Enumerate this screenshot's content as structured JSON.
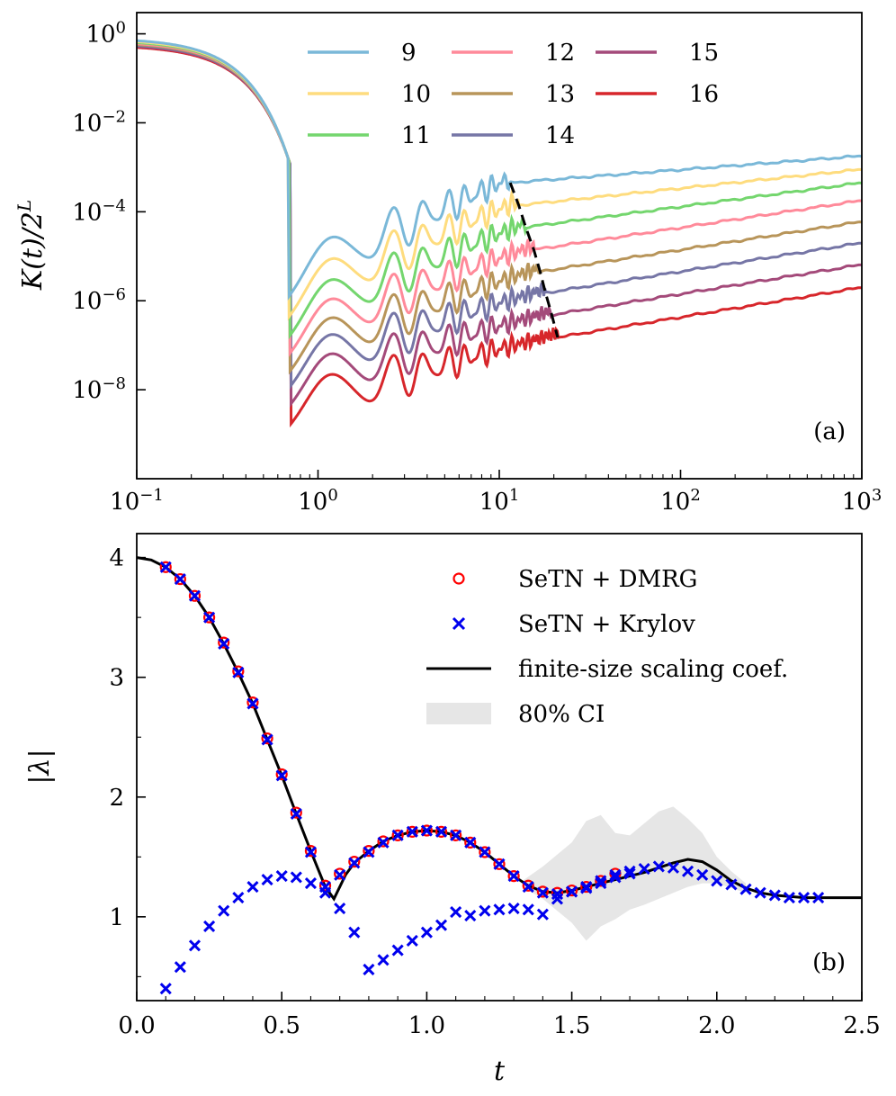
{
  "chart_data": [
    {
      "type": "line",
      "panel_label": "(a)",
      "xlabel": "",
      "ylabel": "K(t)/2^L",
      "ylabel_parts": {
        "base": "K(t)/2",
        "sup": "L"
      },
      "x_scale": "log",
      "y_scale": "log",
      "xlim": [
        0.1,
        1000
      ],
      "ylim": [
        1e-10,
        3
      ],
      "x_ticks": [
        {
          "value": 0.1,
          "base": "10",
          "exp": "−1"
        },
        {
          "value": 1,
          "base": "10",
          "exp": "0"
        },
        {
          "value": 10,
          "base": "10",
          "exp": "1"
        },
        {
          "value": 100,
          "base": "10",
          "exp": "2"
        },
        {
          "value": 1000,
          "base": "10",
          "exp": "3"
        }
      ],
      "y_ticks": [
        {
          "value": 1,
          "base": "10",
          "exp": "0"
        },
        {
          "value": 0.01,
          "base": "10",
          "exp": "−2"
        },
        {
          "value": 0.0001,
          "base": "10",
          "exp": "−4"
        },
        {
          "value": 1e-06,
          "base": "10",
          "exp": "−6"
        },
        {
          "value": 1e-08,
          "base": "10",
          "exp": "−8"
        }
      ],
      "legend_position": "top-center",
      "series": [
        {
          "name": "9",
          "color": "#7ab8d8",
          "init": 0.8,
          "dip": 2e-06,
          "plateau": 0.00045,
          "tth": 11.5,
          "late": 0.0018
        },
        {
          "name": "10",
          "color": "#fedc7e",
          "init": 0.76,
          "dip": 7e-07,
          "plateau": 0.00014,
          "tth": 12.8,
          "late": 0.0009
        },
        {
          "name": "11",
          "color": "#74d66e",
          "init": 0.72,
          "dip": 2.5e-07,
          "plateau": 4.5e-05,
          "tth": 14.0,
          "late": 0.00045
        },
        {
          "name": "12",
          "color": "#ff8a9a",
          "init": 0.68,
          "dip": 1e-07,
          "plateau": 1.4e-05,
          "tth": 15.5,
          "late": 0.00018
        },
        {
          "name": "13",
          "color": "#b8955a",
          "init": 0.65,
          "dip": 4e-08,
          "plateau": 4.5e-06,
          "tth": 16.8,
          "late": 6e-05
        },
        {
          "name": "14",
          "color": "#7676a6",
          "init": 0.62,
          "dip": 1.8e-08,
          "plateau": 1.5e-06,
          "tth": 18.0,
          "late": 2e-05
        },
        {
          "name": "15",
          "color": "#a44a7a",
          "init": 0.59,
          "dip": 7e-09,
          "plateau": 4.8e-07,
          "tth": 19.5,
          "late": 6.5e-06
        },
        {
          "name": "16",
          "color": "#d7262b",
          "init": 0.56,
          "dip": 2.5e-09,
          "plateau": 1.5e-07,
          "tth": 21.0,
          "late": 2e-06
        }
      ],
      "thouless_line": {
        "style": "dashed",
        "color": "#000000"
      }
    },
    {
      "type": "scatter",
      "panel_label": "(b)",
      "xlabel": "t",
      "ylabel": "|λ|",
      "xlim": [
        0.0,
        2.5
      ],
      "ylim": [
        0.3,
        4.2
      ],
      "x_ticks": [
        "0.0",
        "0.5",
        "1.0",
        "1.5",
        "2.0",
        "2.5"
      ],
      "x_tick_values": [
        0.0,
        0.5,
        1.0,
        1.5,
        2.0,
        2.5
      ],
      "y_ticks": [
        "1",
        "2",
        "3",
        "4"
      ],
      "y_tick_values": [
        1,
        2,
        3,
        4
      ],
      "legend_position": "top-right",
      "legend": [
        {
          "label": "SeTN + DMRG",
          "marker": "circle",
          "color": "#ff0000"
        },
        {
          "label": "SeTN + Krylov",
          "marker": "x",
          "color": "#0000ee"
        },
        {
          "label": "finite-size scaling coef.",
          "marker": "line",
          "color": "#000000"
        },
        {
          "label": "80% CI",
          "marker": "patch",
          "color": "#e6e6e6"
        }
      ],
      "fit_curve": {
        "x": [
          0.0,
          0.05,
          0.1,
          0.15,
          0.2,
          0.25,
          0.3,
          0.35,
          0.4,
          0.45,
          0.5,
          0.55,
          0.6,
          0.65,
          0.68,
          0.72,
          0.75,
          0.8,
          0.85,
          0.9,
          0.95,
          1.0,
          1.05,
          1.1,
          1.15,
          1.2,
          1.25,
          1.3,
          1.35,
          1.4,
          1.45,
          1.5,
          1.55,
          1.6,
          1.65,
          1.7,
          1.75,
          1.8,
          1.85,
          1.9,
          1.95,
          2.0,
          2.05,
          2.1,
          2.15,
          2.2,
          2.25,
          2.3,
          2.35,
          2.4,
          2.5
        ],
        "y": [
          4.0,
          3.98,
          3.92,
          3.82,
          3.68,
          3.5,
          3.28,
          3.04,
          2.78,
          2.48,
          2.18,
          1.86,
          1.55,
          1.25,
          1.15,
          1.35,
          1.45,
          1.55,
          1.63,
          1.68,
          1.71,
          1.72,
          1.71,
          1.68,
          1.62,
          1.54,
          1.44,
          1.34,
          1.26,
          1.21,
          1.2,
          1.22,
          1.25,
          1.28,
          1.31,
          1.34,
          1.37,
          1.41,
          1.45,
          1.48,
          1.46,
          1.39,
          1.3,
          1.24,
          1.2,
          1.18,
          1.17,
          1.16,
          1.16,
          1.16,
          1.16
        ]
      },
      "ci_band": {
        "x": [
          1.33,
          1.4,
          1.45,
          1.5,
          1.55,
          1.6,
          1.65,
          1.7,
          1.75,
          1.8,
          1.85,
          1.9,
          1.95,
          2.0,
          2.05,
          2.1
        ],
        "upper": [
          1.3,
          1.42,
          1.52,
          1.62,
          1.8,
          1.85,
          1.7,
          1.68,
          1.78,
          1.88,
          1.92,
          1.82,
          1.7,
          1.5,
          1.38,
          1.28
        ],
        "lower": [
          1.25,
          1.15,
          1.05,
          0.95,
          0.8,
          0.92,
          0.98,
          1.06,
          1.1,
          1.15,
          1.2,
          1.25,
          1.28,
          1.28,
          1.24,
          1.2
        ]
      },
      "dmrg_points": {
        "x": [
          0.1,
          0.15,
          0.2,
          0.25,
          0.3,
          0.35,
          0.4,
          0.45,
          0.5,
          0.55,
          0.6,
          0.65,
          0.7,
          0.75,
          0.8,
          0.85,
          0.9,
          0.95,
          1.0,
          1.05,
          1.1,
          1.15,
          1.2,
          1.25,
          1.3,
          1.35,
          1.4,
          1.45,
          1.5,
          1.55,
          1.6,
          1.65
        ],
        "y": [
          3.92,
          3.82,
          3.68,
          3.5,
          3.29,
          3.05,
          2.79,
          2.49,
          2.19,
          1.87,
          1.55,
          1.26,
          1.36,
          1.46,
          1.55,
          1.63,
          1.68,
          1.71,
          1.72,
          1.71,
          1.68,
          1.62,
          1.54,
          1.44,
          1.34,
          1.26,
          1.21,
          1.2,
          1.22,
          1.25,
          1.3,
          1.36
        ]
      },
      "krylov_upper": {
        "x": [
          0.1,
          0.15,
          0.2,
          0.25,
          0.3,
          0.35,
          0.4,
          0.45,
          0.5,
          0.55,
          0.6,
          0.65,
          0.7,
          0.75,
          0.8,
          0.85,
          0.9,
          0.95,
          1.0,
          1.05,
          1.1,
          1.15,
          1.2,
          1.25,
          1.3,
          1.35,
          1.4,
          1.45,
          1.5,
          1.55,
          1.6,
          1.65,
          1.7,
          1.75,
          1.8,
          1.85,
          1.9,
          1.95,
          2.0,
          2.05,
          2.1,
          2.15,
          2.2,
          2.25,
          2.3,
          2.35
        ],
        "y": [
          3.92,
          3.82,
          3.68,
          3.5,
          3.28,
          3.04,
          2.78,
          2.48,
          2.18,
          1.86,
          1.54,
          1.25,
          1.35,
          1.45,
          1.54,
          1.62,
          1.68,
          1.71,
          1.72,
          1.71,
          1.68,
          1.62,
          1.54,
          1.44,
          1.34,
          1.25,
          1.2,
          1.19,
          1.21,
          1.24,
          1.28,
          1.33,
          1.36,
          1.4,
          1.42,
          1.41,
          1.38,
          1.35,
          1.3,
          1.27,
          1.23,
          1.2,
          1.18,
          1.16,
          1.16,
          1.16
        ]
      },
      "krylov_lower": {
        "x": [
          0.1,
          0.15,
          0.2,
          0.25,
          0.3,
          0.35,
          0.4,
          0.45,
          0.5,
          0.55,
          0.6,
          0.65,
          0.7,
          0.75,
          0.8,
          0.85,
          0.9,
          0.95,
          1.0,
          1.05,
          1.1,
          1.15,
          1.2,
          1.25,
          1.3,
          1.35,
          1.4,
          1.45,
          1.5,
          1.55,
          1.6,
          1.65,
          1.7
        ],
        "y": [
          0.4,
          0.58,
          0.76,
          0.92,
          1.05,
          1.16,
          1.25,
          1.31,
          1.34,
          1.33,
          1.28,
          1.2,
          1.07,
          0.87,
          0.56,
          0.64,
          0.72,
          0.8,
          0.87,
          0.93,
          1.04,
          1.01,
          1.05,
          1.06,
          1.07,
          1.06,
          1.02,
          1.15,
          1.21,
          1.25,
          1.3,
          1.35,
          1.38
        ]
      }
    }
  ]
}
